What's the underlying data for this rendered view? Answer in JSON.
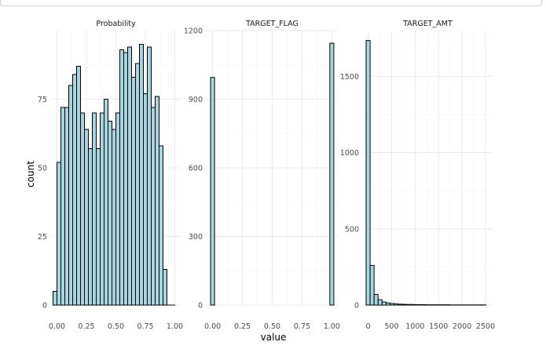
{
  "chart_data": [
    {
      "type": "bar",
      "title": "Probability",
      "xlim": [
        -0.05,
        1.05
      ],
      "ylim": [
        0,
        100
      ],
      "bin_width": 0.0333,
      "x_ticks": [
        0,
        0.25,
        0.5,
        0.75,
        1
      ],
      "x_tick_labels": [
        "0.00",
        "0.25",
        "0.50",
        "0.75",
        "1.00"
      ],
      "y_ticks": [
        0,
        25,
        50,
        75
      ],
      "y_tick_labels": [
        "0",
        "25",
        "50",
        "75"
      ],
      "x": [
        -0.0167,
        0.0167,
        0.05,
        0.0833,
        0.1167,
        0.15,
        0.1833,
        0.2167,
        0.25,
        0.2833,
        0.3167,
        0.35,
        0.3833,
        0.4167,
        0.45,
        0.4833,
        0.5167,
        0.55,
        0.5833,
        0.6167,
        0.65,
        0.6833,
        0.7167,
        0.75,
        0.7833,
        0.8167,
        0.85,
        0.8833,
        0.9167,
        0.95,
        0.9833
      ],
      "values": [
        5,
        52,
        72,
        72,
        80,
        84,
        87,
        70,
        64,
        57,
        70,
        57,
        70,
        75,
        67,
        64,
        70,
        93,
        92,
        94,
        83,
        88,
        95,
        77,
        94,
        72,
        76,
        58,
        13,
        0,
        0
      ],
      "grid": true
    },
    {
      "type": "bar",
      "title": "TARGET_FLAG",
      "xlim": [
        -0.05,
        1.05
      ],
      "ylim": [
        0,
        1200
      ],
      "bin_width": 0.0333,
      "x_ticks": [
        0,
        0.25,
        0.5,
        0.75,
        1
      ],
      "x_tick_labels": [
        "0.00",
        "0.25",
        "0.50",
        "0.75",
        "1.00"
      ],
      "y_ticks": [
        0,
        300,
        600,
        900,
        1200
      ],
      "y_tick_labels": [
        "0",
        "300",
        "600",
        "900",
        "1200"
      ],
      "x": [
        0,
        1
      ],
      "values": [
        995,
        1145
      ],
      "grid": true
    },
    {
      "type": "bar",
      "title": "TARGET_AMT",
      "xlim": [
        -110,
        2650
      ],
      "ylim": [
        0,
        1800
      ],
      "bin_width": 85,
      "x_ticks": [
        0,
        500,
        1000,
        1500,
        2000,
        2500
      ],
      "x_tick_labels": [
        "0",
        "500",
        "1000",
        "1500",
        "2000",
        "2500"
      ],
      "y_ticks": [
        0,
        500,
        1000,
        1500
      ],
      "y_tick_labels": [
        "0",
        "500",
        "1000",
        "1500"
      ],
      "x": [
        0,
        85,
        170,
        255,
        340,
        425,
        510,
        595,
        680,
        765,
        850,
        935,
        1020,
        1105,
        1190,
        1275,
        1360,
        1445,
        1530,
        1615,
        1700,
        1785,
        1870,
        1955,
        2040,
        2125,
        2210,
        2295,
        2380,
        2465
      ],
      "values": [
        1735,
        260,
        70,
        35,
        20,
        14,
        10,
        8,
        6,
        5,
        4,
        4,
        3,
        3,
        3,
        2,
        2,
        2,
        2,
        2,
        2,
        1,
        1,
        1,
        1,
        1,
        1,
        1,
        1,
        1
      ],
      "grid": true
    }
  ],
  "axes": {
    "x_title": "value",
    "y_title": "count"
  },
  "colors": {
    "bar_fill": "#a6d6df",
    "bar_stroke": "#000000",
    "grid_major": "#ebebeb",
    "grid_minor": "#f5f5f5"
  }
}
